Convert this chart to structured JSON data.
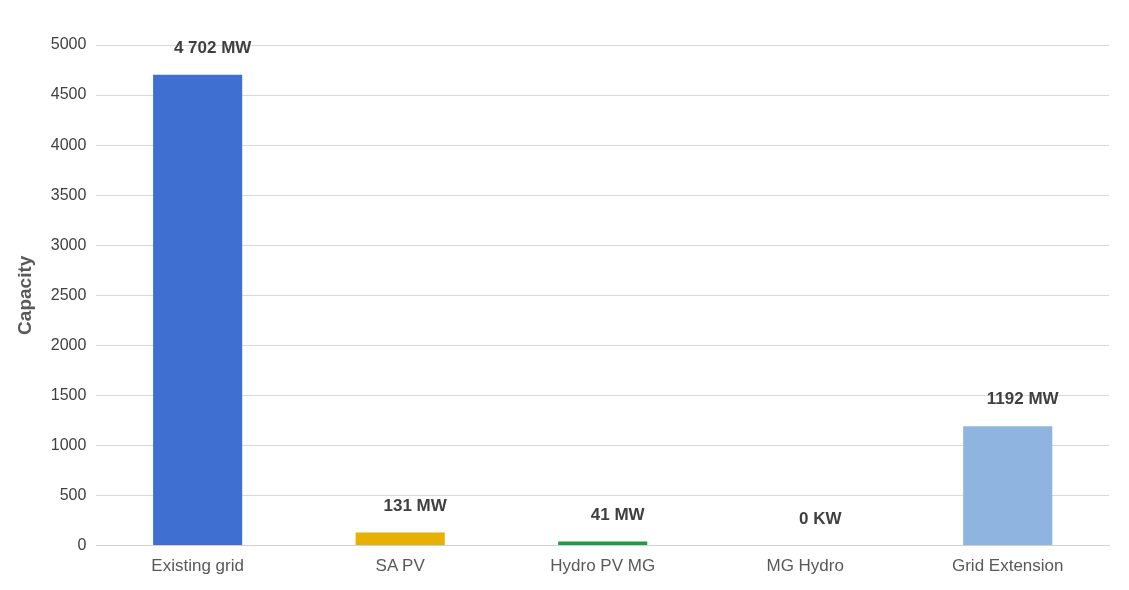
{
  "chart_data": {
    "type": "bar",
    "ylabel": "Capacity",
    "categories": [
      "Existing grid",
      "SA PV",
      "Hydro PV MG",
      "MG Hydro",
      "Grid Extension"
    ],
    "values": [
      4702,
      131,
      41,
      0,
      1192
    ],
    "colors": [
      "#3f6fd1",
      "#e8b000",
      "#1a9e3f",
      "#a00000",
      "#8fb4e0"
    ],
    "value_labels": [
      "4 702 MW",
      "131 MW",
      "41 MW",
      "0 KW",
      "1192 MW"
    ],
    "ylim": [
      0,
      5000
    ],
    "yticks": [
      0,
      500,
      1000,
      1500,
      2000,
      2500,
      3000,
      3500,
      4000,
      4500,
      5000
    ],
    "grid": "y",
    "legend": false
  }
}
